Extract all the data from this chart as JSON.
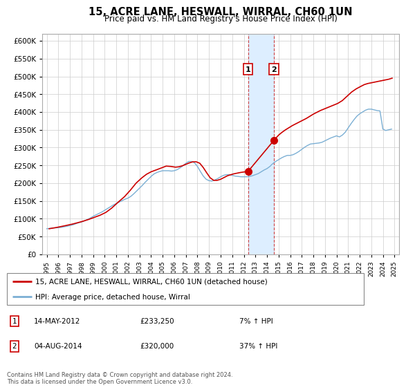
{
  "title": "15, ACRE LANE, HESWALL, WIRRAL, CH60 1UN",
  "subtitle": "Price paid vs. HM Land Registry's House Price Index (HPI)",
  "ylim": [
    0,
    620000
  ],
  "yticks": [
    0,
    50000,
    100000,
    150000,
    200000,
    250000,
    300000,
    350000,
    400000,
    450000,
    500000,
    550000,
    600000
  ],
  "hpi_color": "#7bafd4",
  "price_color": "#cc0000",
  "marker_color": "#cc0000",
  "highlight_color": "#ddeeff",
  "vline_color": "#cc4444",
  "legend_label_price": "15, ACRE LANE, HESWALL, WIRRAL, CH60 1UN (detached house)",
  "legend_label_hpi": "HPI: Average price, detached house, Wirral",
  "transaction1_date": "14-MAY-2012",
  "transaction1_price": "£233,250",
  "transaction1_hpi": "7% ↑ HPI",
  "transaction2_date": "04-AUG-2014",
  "transaction2_price": "£320,000",
  "transaction2_hpi": "37% ↑ HPI",
  "footnote": "Contains HM Land Registry data © Crown copyright and database right 2024.\nThis data is licensed under the Open Government Licence v3.0.",
  "hpi_x": [
    1995,
    1995.25,
    1995.5,
    1995.75,
    1996,
    1996.25,
    1996.5,
    1996.75,
    1997,
    1997.25,
    1997.5,
    1997.75,
    1998,
    1998.25,
    1998.5,
    1998.75,
    1999,
    1999.25,
    1999.5,
    1999.75,
    2000,
    2000.25,
    2000.5,
    2000.75,
    2001,
    2001.25,
    2001.5,
    2001.75,
    2002,
    2002.25,
    2002.5,
    2002.75,
    2003,
    2003.25,
    2003.5,
    2003.75,
    2004,
    2004.25,
    2004.5,
    2004.75,
    2005,
    2005.25,
    2005.5,
    2005.75,
    2006,
    2006.25,
    2006.5,
    2006.75,
    2007,
    2007.25,
    2007.5,
    2007.75,
    2008,
    2008.25,
    2008.5,
    2008.75,
    2009,
    2009.25,
    2009.5,
    2009.75,
    2010,
    2010.25,
    2010.5,
    2010.75,
    2011,
    2011.25,
    2011.5,
    2011.75,
    2012,
    2012.25,
    2012.5,
    2012.75,
    2013,
    2013.25,
    2013.5,
    2013.75,
    2014,
    2014.25,
    2014.5,
    2014.75,
    2015,
    2015.25,
    2015.5,
    2015.75,
    2016,
    2016.25,
    2016.5,
    2016.75,
    2017,
    2017.25,
    2017.5,
    2017.75,
    2018,
    2018.25,
    2018.5,
    2018.75,
    2019,
    2019.25,
    2019.5,
    2019.75,
    2020,
    2020.25,
    2020.5,
    2020.75,
    2021,
    2021.25,
    2021.5,
    2021.75,
    2022,
    2022.25,
    2022.5,
    2022.75,
    2023,
    2023.25,
    2023.5,
    2023.75,
    2024,
    2024.25,
    2024.5,
    2024.75
  ],
  "hpi_y": [
    72000,
    73000,
    74000,
    74500,
    75000,
    76000,
    77500,
    79000,
    81000,
    83000,
    86000,
    89000,
    91000,
    94000,
    98000,
    102000,
    107000,
    111000,
    115000,
    119000,
    124000,
    129000,
    134000,
    139000,
    143000,
    147000,
    151000,
    155000,
    158000,
    163000,
    170000,
    178000,
    186000,
    194000,
    203000,
    211000,
    219000,
    226000,
    230000,
    233000,
    235000,
    235000,
    235000,
    234000,
    235000,
    238000,
    243000,
    249000,
    256000,
    261000,
    261000,
    257000,
    247000,
    233000,
    220000,
    211000,
    207000,
    206000,
    209000,
    213000,
    218000,
    222000,
    224000,
    224000,
    222000,
    220000,
    219000,
    218000,
    218000,
    218000,
    219000,
    221000,
    224000,
    227000,
    232000,
    237000,
    241000,
    247000,
    255000,
    261000,
    266000,
    271000,
    275000,
    278000,
    278000,
    280000,
    284000,
    289000,
    295000,
    301000,
    306000,
    310000,
    311000,
    312000,
    313000,
    315000,
    319000,
    323000,
    327000,
    330000,
    333000,
    330000,
    335000,
    343000,
    355000,
    367000,
    378000,
    388000,
    395000,
    400000,
    405000,
    408000,
    408000,
    406000,
    404000,
    403000,
    352000,
    348000,
    350000,
    352000
  ],
  "price_x": [
    1995.2,
    1995.9,
    1996.5,
    1997.2,
    1997.9,
    1998.6,
    1999.1,
    1999.6,
    2000.1,
    2000.6,
    2001.1,
    2001.7,
    2002.2,
    2002.7,
    2003.2,
    2003.6,
    2004.0,
    2004.5,
    2004.9,
    2005.3,
    2005.7,
    2006.1,
    2006.4,
    2006.7,
    2007.0,
    2007.3,
    2007.6,
    2007.9,
    2008.2,
    2008.5,
    2008.8,
    2009.1,
    2009.4,
    2009.7,
    2010.0,
    2010.3,
    2010.6,
    2010.9,
    2011.1,
    2011.4,
    2011.7,
    2012.37,
    2014.59,
    2015.0,
    2015.3,
    2015.6,
    2015.9,
    2016.2,
    2016.5,
    2016.8,
    2017.1,
    2017.4,
    2017.7,
    2018.0,
    2018.3,
    2018.6,
    2018.9,
    2019.2,
    2019.5,
    2019.8,
    2020.1,
    2020.5,
    2020.9,
    2021.3,
    2021.7,
    2022.1,
    2022.4,
    2022.7,
    2023.0,
    2023.3,
    2023.6,
    2023.9,
    2024.2,
    2024.5,
    2024.8
  ],
  "price_y": [
    72000,
    76000,
    80000,
    85000,
    91000,
    98000,
    104000,
    110000,
    118000,
    130000,
    145000,
    162000,
    180000,
    200000,
    215000,
    225000,
    232000,
    238000,
    243000,
    248000,
    247000,
    245000,
    246000,
    249000,
    253000,
    257000,
    260000,
    260000,
    256000,
    244000,
    229000,
    215000,
    208000,
    208000,
    211000,
    216000,
    221000,
    224000,
    226000,
    228000,
    230000,
    233250,
    320000,
    335000,
    343000,
    350000,
    356000,
    362000,
    367000,
    372000,
    377000,
    382000,
    388000,
    394000,
    399000,
    404000,
    408000,
    412000,
    416000,
    420000,
    424000,
    432000,
    444000,
    456000,
    465000,
    472000,
    477000,
    480000,
    482000,
    484000,
    486000,
    488000,
    490000,
    492000,
    495000
  ],
  "transaction1_x": 2012.37,
  "transaction1_y": 233250,
  "transaction2_x": 2014.59,
  "transaction2_y": 320000,
  "vline1_x": 2012.37,
  "vline2_x": 2014.59,
  "highlight_x_start": 2012.37,
  "highlight_x_end": 2014.59,
  "xmin": 1994.6,
  "xmax": 2025.4
}
